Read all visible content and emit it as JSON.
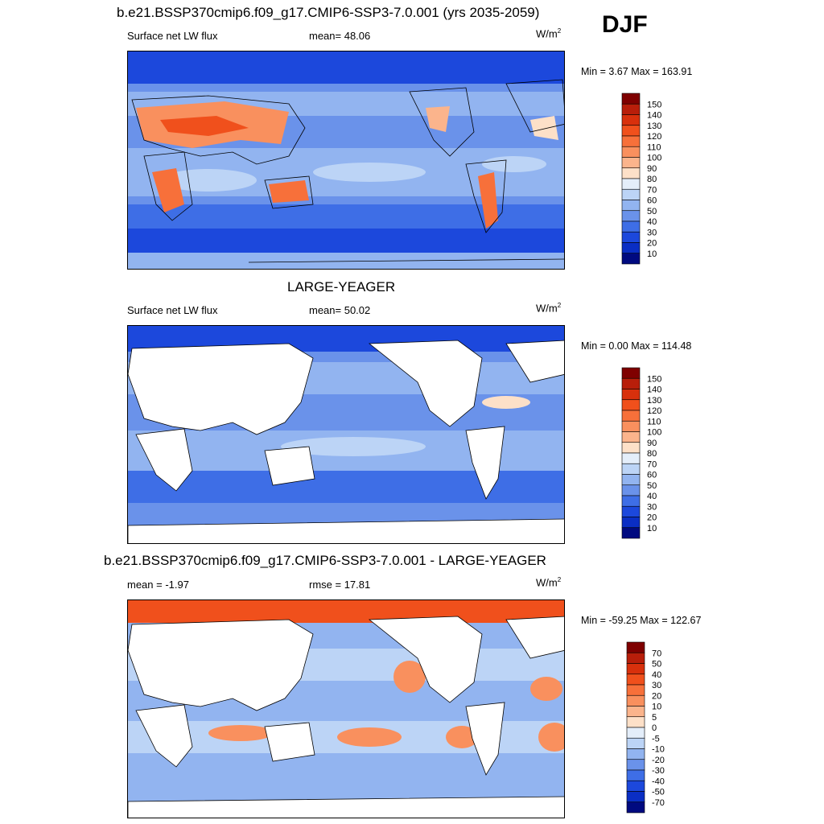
{
  "season": "DJF",
  "panels": [
    {
      "title": "b.e21.BSSP370cmip6.f09_g17.CMIP6-SSP3-7.0.001 (yrs 2035-2059)",
      "variable": "Surface net LW flux",
      "stat": "mean=  48.06",
      "units": "W/m",
      "units_sup": "2",
      "minmax": "Min =   3.67 Max = 163.91"
    },
    {
      "title": "LARGE-YEAGER",
      "variable": "Surface net LW flux",
      "stat": "mean=  50.02",
      "units": "W/m",
      "units_sup": "2",
      "minmax": "Min =   0.00 Max = 114.48"
    },
    {
      "title": "b.e21.BSSP370cmip6.f09_g17.CMIP6-SSP3-7.0.001 - LARGE-YEAGER",
      "variable": "mean =  -1.97",
      "stat": "rmse =  17.81",
      "units": "W/m",
      "units_sup": "2",
      "minmax": "Min = -59.25 Max = 122.67"
    }
  ],
  "colorbars": {
    "flux": {
      "labels": [
        "150",
        "140",
        "130",
        "120",
        "110",
        "100",
        "90",
        "80",
        "70",
        "60",
        "50",
        "40",
        "30",
        "20",
        "10"
      ],
      "colors": [
        "#7f0000",
        "#b81e0a",
        "#d8300c",
        "#f0501c",
        "#f7703a",
        "#f9905e",
        "#fbb48c",
        "#fde0c8",
        "#e4eefa",
        "#bcd4f6",
        "#92b4f0",
        "#6a92ea",
        "#3e6ee6",
        "#1c48dc",
        "#0a2ec4",
        "#000a80"
      ]
    },
    "diff": {
      "labels": [
        "70",
        "50",
        "40",
        "30",
        "20",
        "10",
        "5",
        "0",
        "-5",
        "-10",
        "-20",
        "-30",
        "-40",
        "-50",
        "-70"
      ],
      "colors": [
        "#7f0000",
        "#b81e0a",
        "#d8300c",
        "#f0501c",
        "#f7703a",
        "#f9905e",
        "#fbb48c",
        "#fde0c8",
        "#e4eefa",
        "#bcd4f6",
        "#92b4f0",
        "#6a92ea",
        "#3e6ee6",
        "#1c48dc",
        "#0a2ec4",
        "#000a80"
      ]
    }
  },
  "colors": {
    "land": "#ffffff",
    "coast": "#000000"
  }
}
